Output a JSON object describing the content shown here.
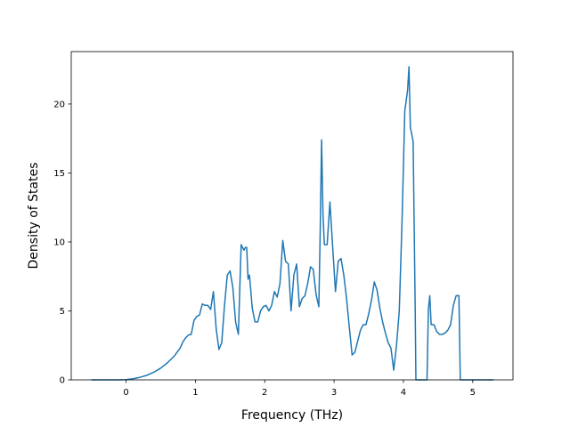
{
  "chart_data": {
    "type": "line",
    "title": "",
    "xlabel": "Frequency (THz)",
    "ylabel": "Density of States",
    "xlim": [
      -0.79,
      5.58
    ],
    "ylim": [
      0,
      23.8
    ],
    "xticks": [
      0,
      1,
      2,
      3,
      4,
      5
    ],
    "xtick_labels": [
      "0",
      "1",
      "2",
      "3",
      "4",
      "5"
    ],
    "yticks": [
      0,
      5,
      10,
      15,
      20
    ],
    "ytick_labels": [
      "0",
      "5",
      "10",
      "15",
      "20"
    ],
    "grid": false,
    "legend": "none",
    "series": [
      {
        "color": "#1f77b4",
        "x": [
          -0.5,
          -0.3,
          -0.1,
          0.0,
          0.1,
          0.2,
          0.3,
          0.4,
          0.5,
          0.6,
          0.7,
          0.78,
          0.82,
          0.86,
          0.9,
          0.94,
          0.98,
          1.02,
          1.06,
          1.1,
          1.14,
          1.18,
          1.22,
          1.26,
          1.3,
          1.34,
          1.38,
          1.42,
          1.46,
          1.5,
          1.54,
          1.58,
          1.62,
          1.66,
          1.7,
          1.72,
          1.74,
          1.76,
          1.78,
          1.82,
          1.86,
          1.9,
          1.94,
          1.98,
          2.02,
          2.06,
          2.1,
          2.14,
          2.18,
          2.22,
          2.26,
          2.3,
          2.34,
          2.38,
          2.42,
          2.46,
          2.5,
          2.54,
          2.58,
          2.62,
          2.66,
          2.7,
          2.74,
          2.78,
          2.8,
          2.82,
          2.84,
          2.86,
          2.9,
          2.94,
          2.98,
          3.02,
          3.06,
          3.1,
          3.14,
          3.18,
          3.22,
          3.26,
          3.3,
          3.34,
          3.38,
          3.42,
          3.46,
          3.5,
          3.54,
          3.58,
          3.62,
          3.66,
          3.7,
          3.74,
          3.78,
          3.82,
          3.86,
          3.9,
          3.94,
          3.98,
          4.02,
          4.06,
          4.08,
          4.1,
          4.14,
          4.17,
          4.18,
          4.2,
          4.25,
          4.3,
          4.34,
          4.36,
          4.38,
          4.4,
          4.44,
          4.48,
          4.52,
          4.56,
          4.6,
          4.64,
          4.68,
          4.72,
          4.76,
          4.8,
          4.82,
          4.9,
          5.1,
          5.3
        ],
        "y": [
          0,
          0,
          0,
          0.02,
          0.08,
          0.18,
          0.33,
          0.55,
          0.85,
          1.25,
          1.75,
          2.3,
          2.75,
          3.05,
          3.25,
          3.3,
          4.3,
          4.6,
          4.7,
          5.5,
          5.4,
          5.4,
          5.1,
          6.4,
          3.7,
          2.2,
          2.7,
          5.4,
          7.6,
          7.9,
          6.7,
          4.2,
          3.3,
          9.8,
          9.4,
          9.6,
          9.6,
          7.3,
          7.6,
          5.2,
          4.2,
          4.2,
          5.0,
          5.3,
          5.4,
          5.0,
          5.4,
          6.4,
          6.0,
          7.0,
          10.1,
          8.6,
          8.4,
          5.0,
          7.6,
          8.4,
          5.3,
          5.9,
          6.1,
          7.0,
          8.2,
          8.0,
          6.2,
          5.3,
          10.8,
          17.4,
          12.0,
          9.8,
          9.8,
          12.9,
          9.6,
          6.4,
          8.6,
          8.8,
          7.6,
          5.9,
          3.8,
          1.8,
          2.0,
          2.8,
          3.6,
          4.0,
          4.0,
          4.8,
          5.8,
          7.1,
          6.5,
          5.2,
          4.2,
          3.4,
          2.7,
          2.3,
          0.7,
          2.5,
          5.0,
          11.5,
          19.5,
          21.0,
          22.7,
          18.3,
          17.3,
          5.0,
          0,
          0,
          0,
          0,
          0,
          5.1,
          6.1,
          4.0,
          4.0,
          3.5,
          3.3,
          3.3,
          3.4,
          3.6,
          4.0,
          5.4,
          6.1,
          6.1,
          0,
          0,
          0,
          0
        ]
      }
    ]
  }
}
